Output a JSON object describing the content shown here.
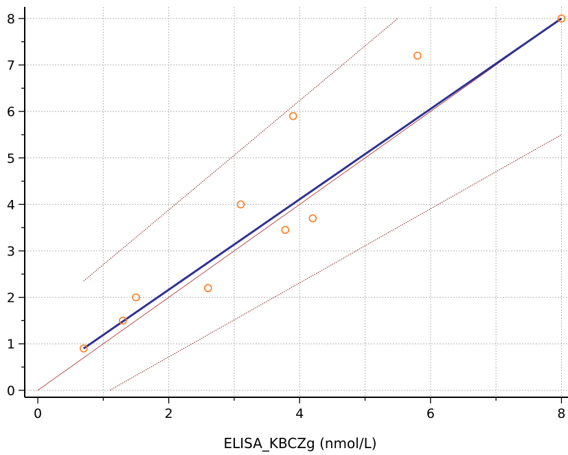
{
  "chart_data": {
    "type": "scatter",
    "xlabel": "ELISA_KBCZg (nmol/L)",
    "ylabel": "",
    "xlim": [
      -0.2,
      8.1
    ],
    "ylim": [
      -0.15,
      8.25
    ],
    "x_ticks": [
      0,
      2,
      4,
      6,
      8
    ],
    "y_ticks": [
      0,
      1,
      2,
      3,
      4,
      5,
      6,
      7,
      8
    ],
    "grid": true,
    "points": [
      {
        "x": 0.7,
        "y": 0.9
      },
      {
        "x": 1.3,
        "y": 1.5
      },
      {
        "x": 1.5,
        "y": 2.0
      },
      {
        "x": 2.6,
        "y": 2.2
      },
      {
        "x": 3.1,
        "y": 4.0
      },
      {
        "x": 3.78,
        "y": 3.45
      },
      {
        "x": 3.9,
        "y": 5.9
      },
      {
        "x": 4.2,
        "y": 3.7
      },
      {
        "x": 5.8,
        "y": 7.2
      },
      {
        "x": 8.0,
        "y": 8.0
      }
    ],
    "regression_line": {
      "from": [
        0.7,
        0.9
      ],
      "to": [
        8.0,
        8.0
      ]
    },
    "identity_line": {
      "from": [
        0.0,
        0.0
      ],
      "to": [
        8.0,
        8.0
      ]
    },
    "prediction_upper": {
      "from": [
        0.7,
        2.35
      ],
      "to": [
        5.5,
        8.0
      ]
    },
    "prediction_lower": {
      "from": [
        1.1,
        0.0
      ],
      "to": [
        8.0,
        5.5
      ]
    },
    "colors": {
      "points": "#ff7a1a",
      "regression": "#2e3192",
      "identity": "#b22222",
      "prediction": "#8b1a1a",
      "grid": "#b4b4b4",
      "axis": "#000000"
    }
  }
}
